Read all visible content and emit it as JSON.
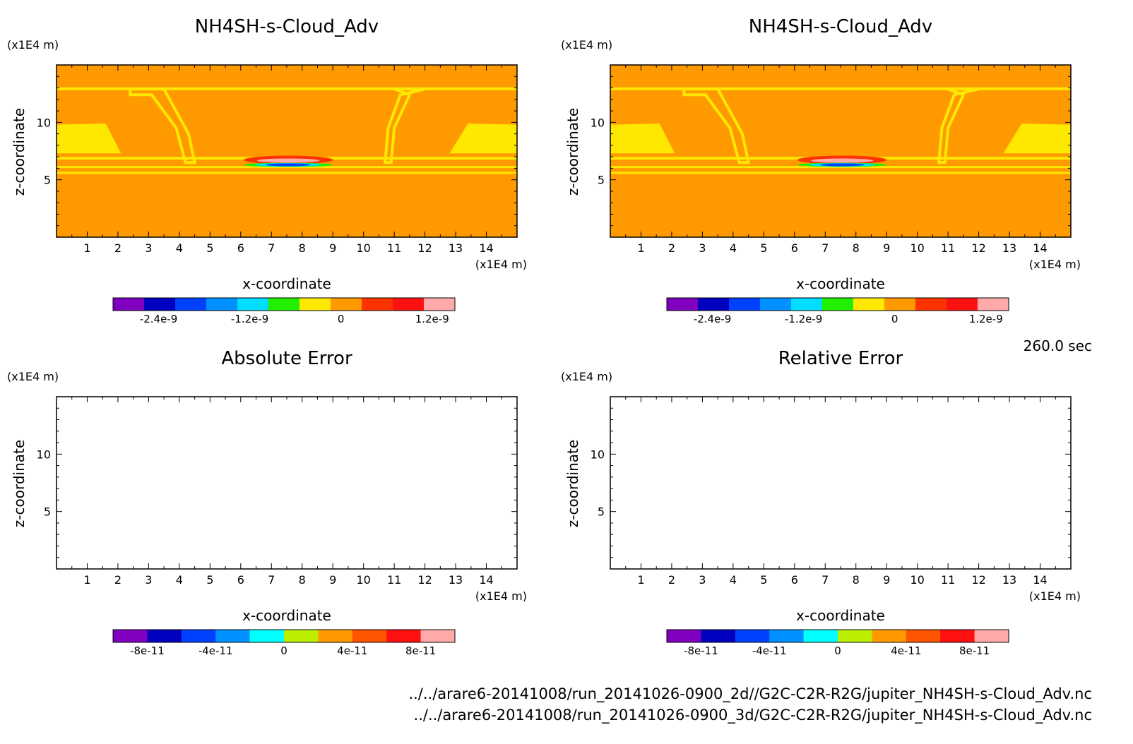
{
  "colors": {
    "palette_main": [
      "#7f00bf",
      "#0000bf",
      "#0040ff",
      "#0090ff",
      "#00ddff",
      "#22ee00",
      "#ffe800",
      "#ff9900",
      "#ff3300",
      "#ff1111",
      "#ffaaaa"
    ],
    "palette_error": [
      "#7f00bf",
      "#0000bf",
      "#0040ff",
      "#0090ff",
      "#00ffff",
      "#bbee00",
      "#ff9900",
      "#ff5500",
      "#ff1111",
      "#ffaaaa"
    ],
    "background_field": "#ff9900",
    "band_field": "#ffe800"
  },
  "time_label": "260.0 sec",
  "file_paths": [
    "../../arare6-20141008/run_20141026-0900_2d//G2C-C2R-R2G/jupiter_NH4SH-s-Cloud_Adv.nc",
    "../../arare6-20141008/run_20141026-0900_3d/G2C-C2R-R2G/jupiter_NH4SH-s-Cloud_Adv.nc"
  ],
  "chart_data": [
    {
      "type": "heatmap",
      "title": "NH4SH-s-Cloud_Adv",
      "xlabel": "x-coordinate",
      "ylabel": "z-coordinate",
      "x_unit": "(x1E4 m)",
      "y_unit": "(x1E4 m)",
      "xlim": [
        0,
        15
      ],
      "ylim": [
        0,
        15
      ],
      "x_ticks": [
        1,
        2,
        3,
        4,
        5,
        6,
        7,
        8,
        9,
        10,
        11,
        12,
        13,
        14
      ],
      "y_ticks": [
        5,
        10
      ],
      "colorbar": {
        "ticks": [
          "-2.4e-9",
          "-1.2e-9",
          "0",
          "1.2e-9"
        ],
        "tick_values": [
          -2.4e-09,
          -1.2e-09,
          0,
          1.2e-09
        ],
        "range": [
          -3e-09,
          1.5e-09
        ]
      },
      "field": "cloud band near z=6, positive/negative anomaly near x=7.5"
    },
    {
      "type": "heatmap",
      "title": "NH4SH-s-Cloud_Adv",
      "xlabel": "x-coordinate",
      "ylabel": "z-coordinate",
      "x_unit": "(x1E4 m)",
      "y_unit": "(x1E4 m)",
      "xlim": [
        0,
        15
      ],
      "ylim": [
        0,
        15
      ],
      "x_ticks": [
        1,
        2,
        3,
        4,
        5,
        6,
        7,
        8,
        9,
        10,
        11,
        12,
        13,
        14
      ],
      "y_ticks": [
        5,
        10
      ],
      "colorbar": {
        "ticks": [
          "-2.4e-9",
          "-1.2e-9",
          "0",
          "1.2e-9"
        ],
        "tick_values": [
          -2.4e-09,
          -1.2e-09,
          0,
          1.2e-09
        ],
        "range": [
          -3e-09,
          1.5e-09
        ]
      },
      "field": "cloud band near z=6, positive/negative anomaly near x=7.5"
    },
    {
      "type": "heatmap",
      "title": "Absolute Error",
      "xlabel": "x-coordinate",
      "ylabel": "z-coordinate",
      "x_unit": "(x1E4 m)",
      "y_unit": "(x1E4 m)",
      "xlim": [
        0,
        15
      ],
      "ylim": [
        0,
        15
      ],
      "x_ticks": [
        1,
        2,
        3,
        4,
        5,
        6,
        7,
        8,
        9,
        10,
        11,
        12,
        13,
        14
      ],
      "y_ticks": [
        5,
        10
      ],
      "colorbar": {
        "ticks": [
          "-8e-11",
          "-4e-11",
          "0",
          "4e-11",
          "8e-11"
        ],
        "tick_values": [
          -8e-11,
          -4e-11,
          0,
          4e-11,
          8e-11
        ],
        "range": [
          -1e-10,
          1e-10
        ]
      },
      "field": "empty"
    },
    {
      "type": "heatmap",
      "title": "Relative Error",
      "xlabel": "x-coordinate",
      "ylabel": "z-coordinate",
      "x_unit": "(x1E4 m)",
      "y_unit": "(x1E4 m)",
      "xlim": [
        0,
        15
      ],
      "ylim": [
        0,
        15
      ],
      "x_ticks": [
        1,
        2,
        3,
        4,
        5,
        6,
        7,
        8,
        9,
        10,
        11,
        12,
        13,
        14
      ],
      "y_ticks": [
        5,
        10
      ],
      "colorbar": {
        "ticks": [
          "-8e-11",
          "-4e-11",
          "0",
          "4e-11",
          "8e-11"
        ],
        "tick_values": [
          -8e-11,
          -4e-11,
          0,
          4e-11,
          8e-11
        ],
        "range": [
          -1e-10,
          1e-10
        ]
      },
      "field": "empty"
    }
  ]
}
